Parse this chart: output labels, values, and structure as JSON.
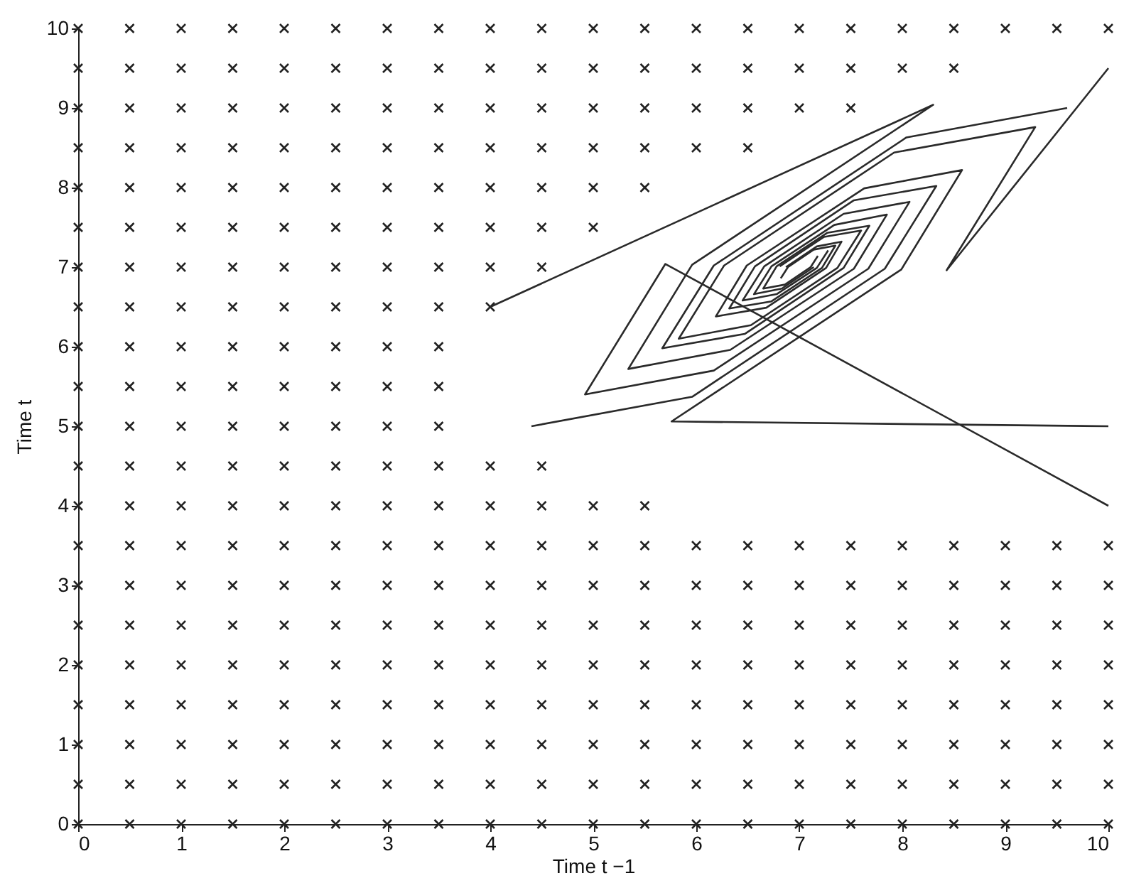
{
  "chart_data": {
    "type": "scatter",
    "xlabel": "Time t −1",
    "ylabel": "Time t",
    "marker": "cross",
    "xlim": [
      0,
      10
    ],
    "ylim": [
      0,
      10
    ],
    "xticks": [
      0,
      1,
      2,
      3,
      4,
      5,
      6,
      7,
      8,
      9,
      10
    ],
    "yticks": [
      0,
      1,
      2,
      3,
      4,
      5,
      6,
      7,
      8,
      9,
      10
    ],
    "series": [
      {
        "color": "#222222",
        "x": [
          0,
          0.5,
          1,
          1.5,
          2,
          2.5,
          3,
          3.5,
          4,
          4.5,
          5,
          5.5,
          6,
          6.5,
          7,
          7.5,
          8,
          8.5,
          9,
          9.5,
          10
        ],
        "values": [
          0,
          0,
          0,
          0,
          0,
          0,
          0,
          0,
          0,
          0,
          0,
          0,
          0,
          0,
          0,
          0,
          0,
          0,
          0,
          0,
          0
        ]
      },
      {
        "color": "#222222",
        "x": [
          0,
          0.5,
          1,
          1.5,
          2,
          2.5,
          3,
          3.5,
          4,
          4.5,
          5,
          5.5,
          6,
          6.5,
          7,
          7.5,
          8,
          8.5,
          9,
          9.5,
          10
        ],
        "values": [
          0.5,
          0.5,
          0.5,
          0.5,
          0.5,
          0.5,
          0.5,
          0.5,
          0.5,
          0.5,
          0.5,
          0.5,
          0.5,
          0.5,
          0.5,
          0.5,
          0.5,
          0.5,
          0.5,
          0.5,
          0.5
        ]
      },
      {
        "color": "#222222",
        "x": [
          0,
          0.5,
          1,
          1.5,
          2,
          2.5,
          3,
          3.5,
          4,
          4.5,
          5,
          5.5,
          6,
          6.5,
          7,
          7.5,
          8,
          8.5,
          9,
          9.5,
          10
        ],
        "values": [
          1,
          1,
          1,
          1,
          1,
          1,
          1,
          1,
          1,
          1,
          1,
          1,
          1,
          1,
          1,
          1,
          1,
          1,
          1,
          1,
          1
        ]
      },
      {
        "color": "#222222",
        "x": [
          0,
          0.5,
          1,
          1.5,
          2,
          2.5,
          3,
          3.5,
          4,
          4.5,
          5,
          5.5,
          6,
          6.5,
          7,
          7.5,
          8,
          8.5,
          9,
          9.5,
          10
        ],
        "values": [
          1.5,
          1.5,
          1.5,
          1.5,
          1.5,
          1.5,
          1.5,
          1.5,
          1.5,
          1.5,
          1.5,
          1.5,
          1.5,
          1.5,
          1.5,
          1.5,
          1.5,
          1.5,
          1.5,
          1.5,
          1.5
        ]
      },
      {
        "color": "#222222",
        "x": [
          0,
          0.5,
          1,
          1.5,
          2,
          2.5,
          3,
          3.5,
          4,
          4.5,
          5,
          5.5,
          6,
          6.5,
          7,
          7.5,
          8,
          8.5,
          9,
          9.5,
          10
        ],
        "values": [
          2,
          2,
          2,
          2,
          2,
          2,
          2,
          2,
          2,
          2,
          2,
          2,
          2,
          2,
          2,
          2,
          2,
          2,
          2,
          2,
          2
        ]
      },
      {
        "color": "#222222",
        "x": [
          0,
          0.5,
          1,
          1.5,
          2,
          2.5,
          3,
          3.5,
          4,
          4.5,
          5,
          5.5,
          6,
          6.5,
          7,
          7.5,
          8,
          8.5,
          9,
          9.5,
          10
        ],
        "values": [
          2.5,
          2.5,
          2.5,
          2.5,
          2.5,
          2.5,
          2.5,
          2.5,
          2.5,
          2.5,
          2.5,
          2.5,
          2.5,
          2.5,
          2.5,
          2.5,
          2.5,
          2.5,
          2.5,
          2.5,
          2.5
        ]
      },
      {
        "color": "#222222",
        "x": [
          0,
          0.5,
          1,
          1.5,
          2,
          2.5,
          3,
          3.5,
          4,
          4.5,
          5,
          5.5,
          6,
          6.5,
          7,
          7.5,
          8,
          8.5,
          9,
          9.5,
          10
        ],
        "values": [
          3,
          3,
          3,
          3,
          3,
          3,
          3,
          3,
          3,
          3,
          3,
          3,
          3,
          3,
          3,
          3,
          3,
          3,
          3,
          3,
          3
        ]
      },
      {
        "color": "#222222",
        "x": [
          0,
          0.5,
          1,
          1.5,
          2,
          2.5,
          3,
          3.5,
          4,
          4.5,
          5,
          5.5,
          6,
          6.5,
          7,
          7.5,
          8,
          8.5,
          9,
          9.5,
          10
        ],
        "values": [
          3.5,
          3.5,
          3.5,
          3.5,
          3.5,
          3.5,
          3.5,
          3.5,
          3.5,
          3.5,
          3.5,
          3.5,
          3.5,
          3.5,
          3.5,
          3.5,
          3.5,
          3.5,
          3.5,
          3.5,
          3.5
        ]
      },
      {
        "color": "#222222",
        "x": [
          0,
          0.5,
          1,
          1.5,
          2,
          2.5,
          3,
          3.5,
          4,
          4.5,
          5,
          5.5
        ],
        "values": [
          4,
          4,
          4,
          4,
          4,
          4,
          4,
          4,
          4,
          4,
          4,
          4
        ]
      },
      {
        "color": "#222222",
        "x": [
          0,
          0.5,
          1,
          1.5,
          2,
          2.5,
          3,
          3.5,
          4,
          4.5
        ],
        "values": [
          4.5,
          4.5,
          4.5,
          4.5,
          4.5,
          4.5,
          4.5,
          4.5,
          4.5,
          4.5
        ]
      },
      {
        "color": "#222222",
        "x": [
          0,
          0.5,
          1,
          1.5,
          2,
          2.5,
          3,
          3.5
        ],
        "values": [
          5,
          5,
          5,
          5,
          5,
          5,
          5,
          5
        ]
      },
      {
        "color": "#222222",
        "x": [
          0,
          0.5,
          1,
          1.5,
          2,
          2.5,
          3,
          3.5
        ],
        "values": [
          5.5,
          5.5,
          5.5,
          5.5,
          5.5,
          5.5,
          5.5,
          5.5
        ]
      },
      {
        "color": "#222222",
        "x": [
          0,
          0.5,
          1,
          1.5,
          2,
          2.5,
          3,
          3.5
        ],
        "values": [
          6,
          6,
          6,
          6,
          6,
          6,
          6,
          6
        ]
      },
      {
        "color": "#222222",
        "x": [
          0,
          0.5,
          1,
          1.5,
          2,
          2.5,
          3,
          3.5,
          4
        ],
        "values": [
          6.5,
          6.5,
          6.5,
          6.5,
          6.5,
          6.5,
          6.5,
          6.5,
          6.5
        ]
      },
      {
        "color": "#222222",
        "x": [
          0,
          0.5,
          1,
          1.5,
          2,
          2.5,
          3,
          3.5,
          4,
          4.5
        ],
        "values": [
          7,
          7,
          7,
          7,
          7,
          7,
          7,
          7,
          7,
          7
        ]
      },
      {
        "color": "#222222",
        "x": [
          0,
          0.5,
          1,
          1.5,
          2,
          2.5,
          3,
          3.5,
          4,
          4.5,
          5
        ],
        "values": [
          7.5,
          7.5,
          7.5,
          7.5,
          7.5,
          7.5,
          7.5,
          7.5,
          7.5,
          7.5,
          7.5
        ]
      },
      {
        "color": "#222222",
        "x": [
          0,
          0.5,
          1,
          1.5,
          2,
          2.5,
          3,
          3.5,
          4,
          4.5,
          5,
          5.5
        ],
        "values": [
          8,
          8,
          8,
          8,
          8,
          8,
          8,
          8,
          8,
          8,
          8,
          8
        ]
      },
      {
        "color": "#222222",
        "x": [
          0,
          0.5,
          1,
          1.5,
          2,
          2.5,
          3,
          3.5,
          4,
          4.5,
          5,
          5.5,
          6,
          6.5
        ],
        "values": [
          8.5,
          8.5,
          8.5,
          8.5,
          8.5,
          8.5,
          8.5,
          8.5,
          8.5,
          8.5,
          8.5,
          8.5,
          8.5,
          8.5
        ]
      },
      {
        "color": "#222222",
        "x": [
          0,
          0.5,
          1,
          1.5,
          2,
          2.5,
          3,
          3.5,
          4,
          4.5,
          5,
          5.5,
          6,
          6.5,
          7,
          7.5
        ],
        "values": [
          9,
          9,
          9,
          9,
          9,
          9,
          9,
          9,
          9,
          9,
          9,
          9,
          9,
          9,
          9,
          9
        ]
      },
      {
        "color": "#222222",
        "x": [
          0,
          0.5,
          1,
          1.5,
          2,
          2.5,
          3,
          3.5,
          4,
          4.5,
          5,
          5.5,
          6,
          6.5,
          7,
          7.5,
          8,
          8.5
        ],
        "values": [
          9.5,
          9.5,
          9.5,
          9.5,
          9.5,
          9.5,
          9.5,
          9.5,
          9.5,
          9.5,
          9.5,
          9.5,
          9.5,
          9.5,
          9.5,
          9.5,
          9.5,
          9.5
        ]
      },
      {
        "color": "#222222",
        "x": [
          0,
          0.5,
          1,
          1.5,
          2,
          2.5,
          3,
          3.5,
          4,
          4.5,
          5,
          5.5,
          6,
          6.5,
          7,
          7.5,
          8,
          8.5,
          9,
          9.5,
          10
        ],
        "values": [
          10,
          10,
          10,
          10,
          10,
          10,
          10,
          10,
          10,
          10,
          10,
          10,
          10,
          10,
          10,
          10,
          10,
          10,
          10,
          10,
          10
        ]
      },
      {
        "type": "line",
        "color": "#2a2a2a",
        "marker": "none",
        "x": [
          9.6,
          8.04,
          6.17,
          5.67,
          6.47,
          7.43,
          7.68,
          7.27,
          6.78,
          6.65,
          6.86,
          7.11,
          7.18
        ],
        "values": [
          9.0,
          8.63,
          7.02,
          5.98,
          6.16,
          6.99,
          7.52,
          7.43,
          7.01,
          6.73,
          6.78,
          7.0,
          7.14
        ]
      },
      {
        "type": "line",
        "color": "#2a2a2a",
        "marker": "none",
        "x": [
          4.4,
          5.96,
          7.83,
          8.33,
          7.53,
          6.57,
          6.32,
          6.73,
          7.22,
          7.35,
          7.14,
          6.89,
          6.82
        ],
        "values": [
          5.0,
          5.37,
          6.98,
          8.02,
          7.84,
          7.01,
          6.48,
          6.57,
          6.99,
          7.27,
          7.22,
          7.0,
          6.86
        ]
      },
      {
        "type": "line",
        "color": "#2a2a2a",
        "marker": "none",
        "x": [
          10,
          5.76,
          7.99,
          8.58,
          7.63,
          6.49,
          6.19,
          6.68,
          7.26,
          7.41,
          7.17,
          6.87
        ],
        "values": [
          5.0,
          5.06,
          6.97,
          8.22,
          7.99,
          7.02,
          6.38,
          6.49,
          6.99,
          7.32,
          7.26,
          7.0
        ]
      },
      {
        "type": "line",
        "color": "#2a2a2a",
        "marker": "none",
        "x": [
          10,
          5.7,
          4.92,
          6.17,
          7.67,
          8.07,
          7.43,
          6.66,
          6.45,
          6.78,
          7.17,
          7.28
        ],
        "values": [
          4.0,
          7.04,
          5.4,
          5.7,
          6.98,
          7.82,
          7.67,
          7.01,
          6.58,
          6.66,
          6.99,
          7.21
        ]
      },
      {
        "type": "line",
        "color": "#2a2a2a",
        "marker": "none",
        "x": [
          4,
          8.3,
          5.96,
          5.34,
          6.33,
          7.53,
          7.85,
          7.34,
          6.73,
          6.56,
          6.83,
          7.14
        ],
        "values": [
          6.5,
          9.04,
          7.03,
          5.72,
          5.96,
          6.98,
          7.66,
          7.53,
          7.01,
          6.66,
          6.73,
          7.0
        ]
      },
      {
        "type": "line",
        "color": "#2a2a2a",
        "marker": "none",
        "x": [
          10,
          8.43,
          9.29,
          7.92,
          6.27,
          5.83,
          6.53,
          7.37,
          7.6,
          7.24,
          6.81
        ],
        "values": [
          9.5,
          6.96,
          8.76,
          8.44,
          7.02,
          6.1,
          6.27,
          6.99,
          7.46,
          7.38,
          7.01
        ]
      }
    ]
  }
}
